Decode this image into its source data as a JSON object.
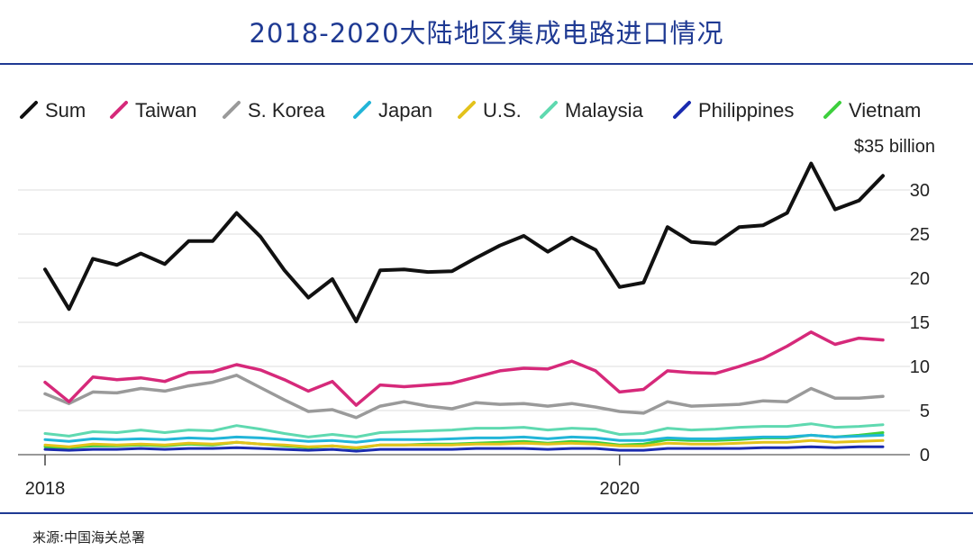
{
  "page": {
    "title": "2018-2020大陆地区集成电路进口情况",
    "source": "来源:中国海关总署"
  },
  "chart_data": {
    "type": "line",
    "ylim": [
      0,
      35
    ],
    "y_ticks": [
      0,
      5,
      10,
      15,
      20,
      25,
      30,
      35
    ],
    "y_tick_labels": [
      "0",
      "5",
      "10",
      "15",
      "20",
      "25",
      "30",
      "$35 billion"
    ],
    "x_start": "2018-01",
    "x_ticks": [
      {
        "label": "2018",
        "month_index": 0
      },
      {
        "label": "2020",
        "month_index": 24
      }
    ],
    "legend_placement": "top",
    "series": [
      {
        "name": "Sum",
        "color": "#111111",
        "values": [
          21,
          16.5,
          22.2,
          21.5,
          22.8,
          21.6,
          24.2,
          24.2,
          27.4,
          24.7,
          20.9,
          17.8,
          19.9,
          15.1,
          20.9,
          21.0,
          20.7,
          20.8,
          22.3,
          23.7,
          24.8,
          23.0,
          24.6,
          23.2,
          19.0,
          19.5,
          25.8,
          24.1,
          23.9,
          25.8,
          26.0,
          27.4,
          33.0,
          27.8,
          28.8,
          31.6
        ]
      },
      {
        "name": "Taiwan",
        "color": "#d6297a",
        "values": [
          8.2,
          6.0,
          8.8,
          8.5,
          8.7,
          8.3,
          9.3,
          9.4,
          10.2,
          9.6,
          8.5,
          7.2,
          8.3,
          5.6,
          7.9,
          7.7,
          7.9,
          8.1,
          8.8,
          9.5,
          9.8,
          9.7,
          10.6,
          9.5,
          7.1,
          7.4,
          9.5,
          9.3,
          9.2,
          10.0,
          10.9,
          12.3,
          13.9,
          12.5,
          13.2,
          13.0
        ]
      },
      {
        "name": "S. Korea",
        "color": "#9a9a9a",
        "values": [
          6.9,
          5.8,
          7.1,
          7.0,
          7.5,
          7.2,
          7.8,
          8.2,
          9.0,
          7.6,
          6.2,
          4.9,
          5.1,
          4.2,
          5.5,
          6.0,
          5.5,
          5.2,
          5.9,
          5.7,
          5.8,
          5.5,
          5.8,
          5.4,
          4.9,
          4.7,
          6.0,
          5.5,
          5.6,
          5.7,
          6.1,
          6.0,
          7.5,
          6.4,
          6.4,
          6.6
        ]
      },
      {
        "name": "Japan",
        "color": "#22b5d8",
        "values": [
          1.7,
          1.5,
          1.8,
          1.7,
          1.8,
          1.7,
          1.9,
          1.8,
          2.0,
          1.9,
          1.7,
          1.5,
          1.6,
          1.4,
          1.7,
          1.7,
          1.7,
          1.8,
          1.9,
          1.9,
          2.0,
          1.8,
          2.0,
          1.9,
          1.6,
          1.6,
          1.9,
          1.8,
          1.8,
          1.9,
          2.0,
          2.0,
          2.2,
          2.0,
          2.1,
          2.2
        ]
      },
      {
        "name": "U.S.",
        "color": "#e3c21b",
        "values": [
          1.1,
          0.9,
          1.2,
          1.1,
          1.2,
          1.1,
          1.3,
          1.2,
          1.4,
          1.2,
          1.1,
          0.9,
          1.0,
          0.8,
          1.1,
          1.1,
          1.1,
          1.1,
          1.2,
          1.2,
          1.3,
          1.2,
          1.3,
          1.2,
          1.0,
          1.0,
          1.3,
          1.2,
          1.2,
          1.3,
          1.4,
          1.4,
          1.6,
          1.4,
          1.5,
          1.6
        ]
      },
      {
        "name": "Malaysia",
        "color": "#5fd9b0",
        "values": [
          2.4,
          2.1,
          2.6,
          2.5,
          2.8,
          2.5,
          2.8,
          2.7,
          3.3,
          2.9,
          2.4,
          2.0,
          2.3,
          2.0,
          2.5,
          2.6,
          2.7,
          2.8,
          3.0,
          3.0,
          3.1,
          2.8,
          3.0,
          2.9,
          2.3,
          2.4,
          3.0,
          2.8,
          2.9,
          3.1,
          3.2,
          3.2,
          3.5,
          3.1,
          3.2,
          3.4
        ]
      },
      {
        "name": "Philippines",
        "color": "#1a2bb0",
        "values": [
          0.6,
          0.5,
          0.6,
          0.6,
          0.7,
          0.6,
          0.7,
          0.7,
          0.8,
          0.7,
          0.6,
          0.5,
          0.6,
          0.4,
          0.6,
          0.6,
          0.6,
          0.6,
          0.7,
          0.7,
          0.7,
          0.6,
          0.7,
          0.7,
          0.5,
          0.5,
          0.7,
          0.7,
          0.7,
          0.7,
          0.8,
          0.8,
          0.9,
          0.8,
          0.9,
          0.9
        ]
      },
      {
        "name": "Vietnam",
        "color": "#3dcf3d",
        "values": [
          0.9,
          0.8,
          1.0,
          1.0,
          1.1,
          1.0,
          1.2,
          1.1,
          1.4,
          1.2,
          1.0,
          0.8,
          1.0,
          0.7,
          1.1,
          1.1,
          1.2,
          1.2,
          1.3,
          1.4,
          1.5,
          1.3,
          1.5,
          1.4,
          1.1,
          1.2,
          1.7,
          1.6,
          1.6,
          1.7,
          1.9,
          1.9,
          2.2,
          2.0,
          2.2,
          2.5
        ]
      }
    ]
  }
}
